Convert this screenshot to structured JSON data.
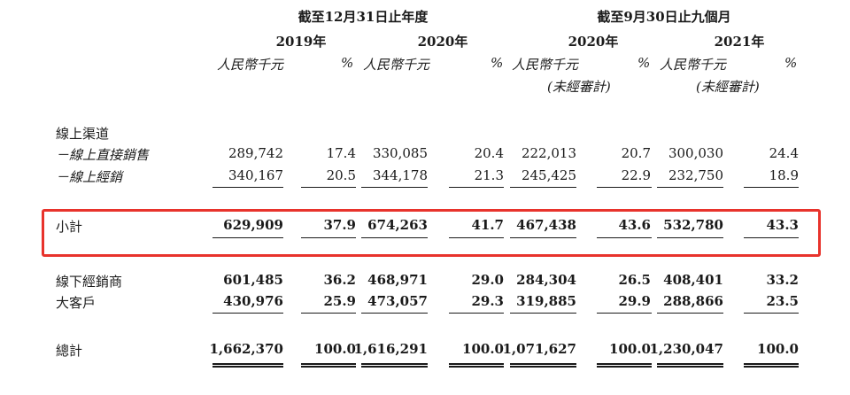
{
  "header": {
    "group1": "截至12月31日止年度",
    "group2": "截至9月30日止九個月",
    "years": [
      "2019年",
      "2020年",
      "2020年",
      "2021年"
    ],
    "unit_rmb": "人民幣千元",
    "unit_pct": "%",
    "unaudited": "(未經審計)"
  },
  "rows": [
    {
      "label": "線上渠道",
      "values": []
    },
    {
      "label": "－線上直接銷售",
      "values": [
        "289,742",
        "17.4",
        "330,085",
        "20.4",
        "222,013",
        "20.7",
        "300,030",
        "24.4"
      ]
    },
    {
      "label": "－線上經銷",
      "values": [
        "340,167",
        "20.5",
        "344,178",
        "21.3",
        "245,425",
        "22.9",
        "232,750",
        "18.9"
      ]
    },
    {
      "label": "小計",
      "values": [
        "629,909",
        "37.9",
        "674,263",
        "41.7",
        "467,438",
        "43.6",
        "532,780",
        "43.3"
      ]
    },
    {
      "label": "線下經銷商",
      "values": [
        "601,485",
        "36.2",
        "468,971",
        "29.0",
        "284,304",
        "26.5",
        "408,401",
        "33.2"
      ]
    },
    {
      "label": "大客戶",
      "values": [
        "430,976",
        "25.9",
        "473,057",
        "29.3",
        "319,885",
        "29.9",
        "288,866",
        "23.5"
      ]
    },
    {
      "label": "總計",
      "values": [
        "1,662,370",
        "100.0",
        "1,616,291",
        "100.0",
        "1,071,627",
        "100.0",
        "1,230,047",
        "100.0"
      ]
    }
  ],
  "highlight_color": "#e8332c"
}
